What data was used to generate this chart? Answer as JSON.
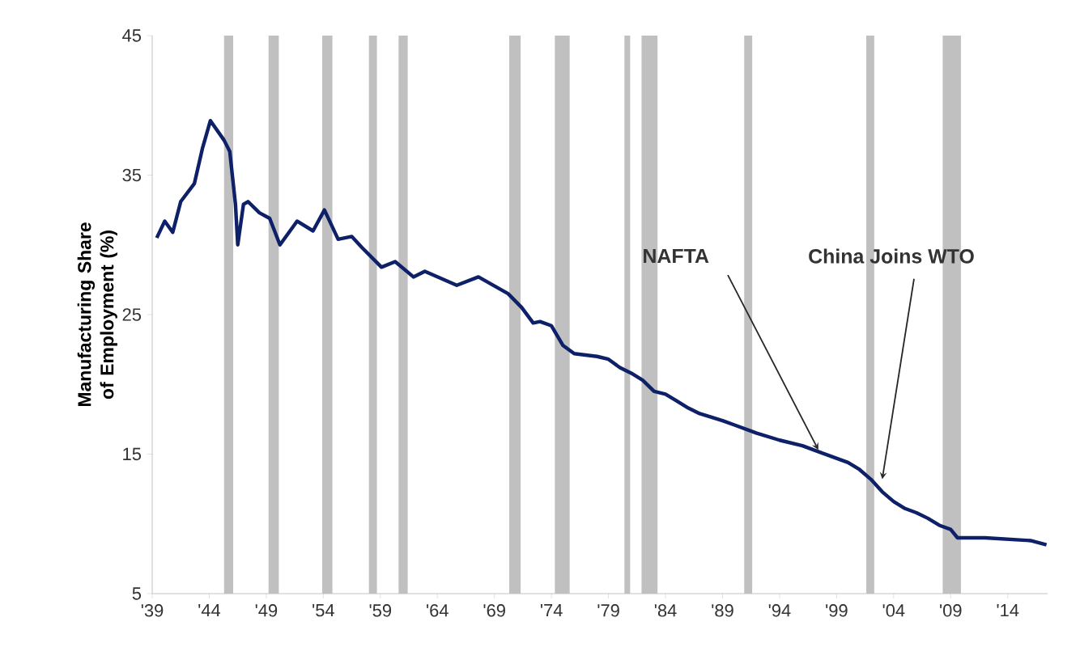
{
  "chart_data": {
    "type": "line",
    "ylabel": "Manufacturing Share of Employment (%)",
    "xlim": [
      1939,
      2017.5
    ],
    "ylim": [
      5,
      45
    ],
    "yticks": [
      5,
      15,
      25,
      35,
      45
    ],
    "xticks": [
      {
        "value": 1939,
        "label": "'39"
      },
      {
        "value": 1944,
        "label": "'44"
      },
      {
        "value": 1949,
        "label": "'49"
      },
      {
        "value": 1954,
        "label": "'54"
      },
      {
        "value": 1959,
        "label": "'59"
      },
      {
        "value": 1964,
        "label": "'64"
      },
      {
        "value": 1969,
        "label": "'69"
      },
      {
        "value": 1974,
        "label": "'74"
      },
      {
        "value": 1979,
        "label": "'79"
      },
      {
        "value": 1984,
        "label": "'84"
      },
      {
        "value": 1989,
        "label": "'89"
      },
      {
        "value": 1994,
        "label": "'94"
      },
      {
        "value": 1999,
        "label": "'99"
      },
      {
        "value": 2004,
        "label": "'04"
      },
      {
        "value": 2009,
        "label": "'09"
      },
      {
        "value": 2014,
        "label": "'14"
      }
    ],
    "grid": false,
    "marker": "none",
    "line_style": "solid",
    "series": [
      {
        "color": "#0d2068",
        "x": [
          1939.4,
          1940.1,
          1940.8,
          1941.5,
          1942.7,
          1943.4,
          1944.1,
          1945.3,
          1945.8,
          1946.3,
          1946.5,
          1947,
          1947.4,
          1948.4,
          1949.3,
          1950.2,
          1951.7,
          1953.1,
          1954.1,
          1955.3,
          1956.5,
          1957.4,
          1959.1,
          1960.3,
          1961.9,
          1962.9,
          1965.7,
          1967.6,
          1970.2,
          1971.4,
          1972.4,
          1973,
          1974,
          1975,
          1976,
          1978,
          1979,
          1980,
          1981,
          1982,
          1983,
          1984,
          1985,
          1986,
          1987,
          1989,
          1990,
          1992,
          1994,
          1996,
          1998,
          2000,
          2001,
          2002,
          2003,
          2004,
          2005,
          2006,
          2007,
          2008,
          2009,
          2009.6,
          2012,
          2014,
          2016,
          2017.4
        ],
        "values": [
          30.5,
          31.7,
          30.9,
          33.1,
          34.4,
          36.9,
          38.9,
          37.5,
          36.7,
          32.9,
          30.0,
          32.9,
          33.1,
          32.3,
          31.9,
          30.0,
          31.7,
          31.0,
          32.5,
          30.4,
          30.6,
          29.8,
          28.4,
          28.8,
          27.7,
          28.1,
          27.1,
          27.7,
          26.5,
          25.5,
          24.4,
          24.5,
          24.2,
          22.8,
          22.2,
          22.0,
          21.8,
          21.2,
          20.8,
          20.3,
          19.5,
          19.3,
          18.8,
          18.3,
          17.9,
          17.4,
          17.1,
          16.5,
          16.0,
          15.6,
          15.0,
          14.4,
          13.9,
          13.2,
          12.3,
          11.6,
          11.1,
          10.8,
          10.4,
          9.9,
          9.6,
          9.0,
          9.0,
          8.9,
          8.8,
          8.5
        ]
      }
    ],
    "bands": [
      {
        "axis": "x",
        "from": 1945.3,
        "to": 1946.1,
        "color": "#c0c0c0"
      },
      {
        "axis": "x",
        "from": 1949.2,
        "to": 1950.1,
        "color": "#c0c0c0"
      },
      {
        "axis": "x",
        "from": 1953.9,
        "to": 1954.8,
        "color": "#c0c0c0"
      },
      {
        "axis": "x",
        "from": 1958.0,
        "to": 1958.7,
        "color": "#c0c0c0"
      },
      {
        "axis": "x",
        "from": 1960.6,
        "to": 1961.4,
        "color": "#c0c0c0"
      },
      {
        "axis": "x",
        "from": 1970.3,
        "to": 1971.3,
        "color": "#c0c0c0"
      },
      {
        "axis": "x",
        "from": 1974.3,
        "to": 1975.6,
        "color": "#c0c0c0"
      },
      {
        "axis": "x",
        "from": 1980.4,
        "to": 1980.9,
        "color": "#c0c0c0"
      },
      {
        "axis": "x",
        "from": 1981.9,
        "to": 1983.3,
        "color": "#c0c0c0"
      },
      {
        "axis": "x",
        "from": 1990.9,
        "to": 1991.6,
        "color": "#c0c0c0"
      },
      {
        "axis": "x",
        "from": 2001.6,
        "to": 2002.3,
        "color": "#c0c0c0"
      },
      {
        "axis": "x",
        "from": 2008.3,
        "to": 2009.9,
        "color": "#c0c0c0"
      }
    ],
    "annotations": [
      {
        "text": "NAFTA",
        "x": 1997.4,
        "y": 15.3
      },
      {
        "text": "China Joins WTO",
        "x": 2003,
        "y": 13.2
      }
    ]
  }
}
